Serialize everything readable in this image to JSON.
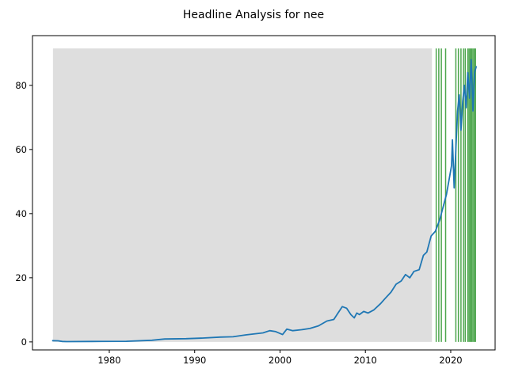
{
  "chart_data": {
    "type": "line",
    "title": "Headline Analysis for nee",
    "xlabel": "",
    "ylabel": "",
    "xlim": [
      1971.0,
      2025.2
    ],
    "ylim": [
      -2.5,
      95.5
    ],
    "x_ticks": [
      1980,
      1990,
      2000,
      2010,
      2020
    ],
    "y_ticks": [
      0,
      20,
      40,
      60,
      80
    ],
    "grid": false,
    "legend": "none",
    "colors": {
      "line": "#1f77b4",
      "shade": "#dedede",
      "events": "#4da64d"
    },
    "shaded_region": {
      "x_start": 1973.4,
      "x_end": 2017.8,
      "y_top": 91.5
    },
    "event_lines": [
      2018.3,
      2018.6,
      2018.9,
      2019.4,
      2020.6,
      2020.9,
      2021.2,
      2021.5,
      2021.7,
      2022.0,
      2022.15,
      2022.3,
      2022.45,
      2022.6,
      2022.75,
      2022.9
    ],
    "series": [
      {
        "x": [
          1973.3,
          1974.0,
          1974.5,
          1975.0,
          1978.0,
          1982.0,
          1985.0,
          1986.5,
          1989.0,
          1991.0,
          1993.0,
          1994.5,
          1996.0,
          1998.0,
          1998.8,
          1999.5,
          2000.3,
          2000.8,
          2001.5,
          2002.5,
          2003.5,
          2004.5,
          2005.5,
          2006.3,
          2006.8,
          2007.3,
          2007.8,
          2008.3,
          2008.7,
          2009.0,
          2009.3,
          2009.8,
          2010.3,
          2011.0,
          2011.8,
          2012.3,
          2013.0,
          2013.6,
          2014.2,
          2014.7,
          2015.2,
          2015.7,
          2016.3,
          2016.8,
          2017.2,
          2017.7,
          2018.2,
          2018.7,
          2019.1,
          2019.5,
          2019.9,
          2020.1,
          2020.2,
          2020.4,
          2020.6,
          2020.8,
          2021.0,
          2021.2,
          2021.4,
          2021.6,
          2021.8,
          2022.0,
          2022.2,
          2022.4,
          2022.6,
          2022.8,
          2023.0
        ],
        "values": [
          0.4,
          0.35,
          0.15,
          0.1,
          0.15,
          0.2,
          0.5,
          0.9,
          1.0,
          1.2,
          1.5,
          1.6,
          2.2,
          2.8,
          3.5,
          3.2,
          2.3,
          4.0,
          3.5,
          3.8,
          4.2,
          5.0,
          6.5,
          7.0,
          9.0,
          11.0,
          10.5,
          8.5,
          7.5,
          9.0,
          8.5,
          9.5,
          9.0,
          10.0,
          12.0,
          13.5,
          15.5,
          18.0,
          19.0,
          21.0,
          20.0,
          22.0,
          22.5,
          27.0,
          28.0,
          33.0,
          34.5,
          38.0,
          42.0,
          46.0,
          52.0,
          55.0,
          63.0,
          48.0,
          60.0,
          72.0,
          77.0,
          66.0,
          75.0,
          80.0,
          73.0,
          84.0,
          76.0,
          88.0,
          72.0,
          84.0,
          86.0
        ]
      }
    ]
  }
}
